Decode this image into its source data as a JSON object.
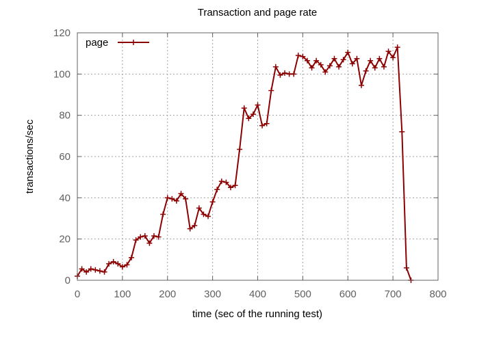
{
  "chart_data": {
    "type": "line",
    "title": "Transaction and page rate",
    "xlabel": "time (sec of the running test)",
    "ylabel": "transactions/sec",
    "xlim": [
      0,
      800
    ],
    "ylim": [
      0,
      120
    ],
    "xticks": [
      0,
      100,
      200,
      300,
      400,
      500,
      600,
      700,
      800
    ],
    "yticks": [
      0,
      20,
      40,
      60,
      80,
      100,
      120
    ],
    "grid": true,
    "legend_position": "top-left",
    "series": [
      {
        "name": "page",
        "color": "#8b0000",
        "marker": "plus",
        "x": [
          0,
          10,
          20,
          30,
          40,
          50,
          60,
          70,
          80,
          90,
          100,
          110,
          120,
          130,
          140,
          150,
          160,
          170,
          180,
          190,
          200,
          210,
          220,
          230,
          240,
          250,
          260,
          270,
          280,
          290,
          300,
          310,
          320,
          330,
          340,
          350,
          360,
          370,
          380,
          390,
          400,
          410,
          420,
          430,
          440,
          450,
          460,
          470,
          480,
          490,
          500,
          510,
          520,
          530,
          540,
          550,
          560,
          570,
          580,
          590,
          600,
          610,
          620,
          630,
          640,
          650,
          660,
          670,
          680,
          690,
          700,
          710,
          720,
          730,
          740
        ],
        "y": [
          2,
          5.5,
          4,
          5.5,
          5,
          4.5,
          4,
          8,
          9,
          8,
          6.5,
          7.5,
          11,
          19.5,
          21,
          21.5,
          18,
          21.5,
          21,
          32,
          40,
          39.5,
          38.5,
          42,
          39.5,
          25,
          26.5,
          35,
          32,
          31,
          38,
          44,
          48,
          47.5,
          45,
          46,
          63.5,
          83.5,
          78.5,
          80.5,
          85,
          75,
          76,
          92,
          103.5,
          99.5,
          100.5,
          100,
          100,
          109,
          108.5,
          106.5,
          103,
          106.5,
          104.5,
          101,
          104,
          107.5,
          103.5,
          107,
          110.5,
          105,
          107.5,
          94.5,
          101.5,
          106.5,
          103,
          107.5,
          103.5,
          111,
          108,
          113,
          72,
          6,
          0
        ]
      }
    ]
  }
}
